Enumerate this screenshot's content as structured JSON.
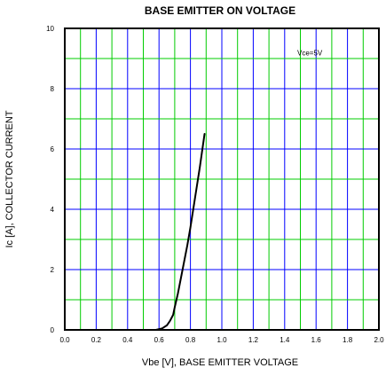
{
  "chart_data": {
    "type": "line",
    "title": "BASE EMITTER ON VOLTAGE",
    "xlabel": "Vbe [V], BASE EMITTER VOLTAGE",
    "ylabel": "Ic [A], COLLECTOR CURRENT",
    "xlim": [
      0.0,
      2.0
    ],
    "ylim": [
      0,
      10
    ],
    "x_ticks": [
      "0.0",
      "0.2",
      "0.4",
      "0.6",
      "0.8",
      "1.0",
      "1.2",
      "1.4",
      "1.6",
      "1.8",
      "2.0"
    ],
    "y_ticks": [
      "0",
      "2",
      "4",
      "6",
      "8",
      "10"
    ],
    "x_tick_values": [
      0.0,
      0.2,
      0.4,
      0.6,
      0.8,
      1.0,
      1.2,
      1.4,
      1.6,
      1.8,
      2.0
    ],
    "y_tick_values": [
      0,
      2,
      4,
      6,
      8,
      10
    ],
    "grid": true,
    "annotation": "Vce=5V",
    "annotation_x": 1.56,
    "annotation_y": 9.1,
    "colors": {
      "major_grid": "#0000ff",
      "minor_grid": "#00cc00",
      "curve": "#000000",
      "frame": "#000000"
    },
    "series": [
      {
        "x": [
          0.58,
          0.62,
          0.65,
          0.67,
          0.69,
          0.7,
          0.72,
          0.75,
          0.78,
          0.8,
          0.83,
          0.86,
          0.89
        ],
        "y": [
          0.0,
          0.05,
          0.15,
          0.3,
          0.5,
          0.75,
          1.2,
          2.0,
          2.8,
          3.4,
          4.4,
          5.4,
          6.5
        ]
      }
    ]
  }
}
